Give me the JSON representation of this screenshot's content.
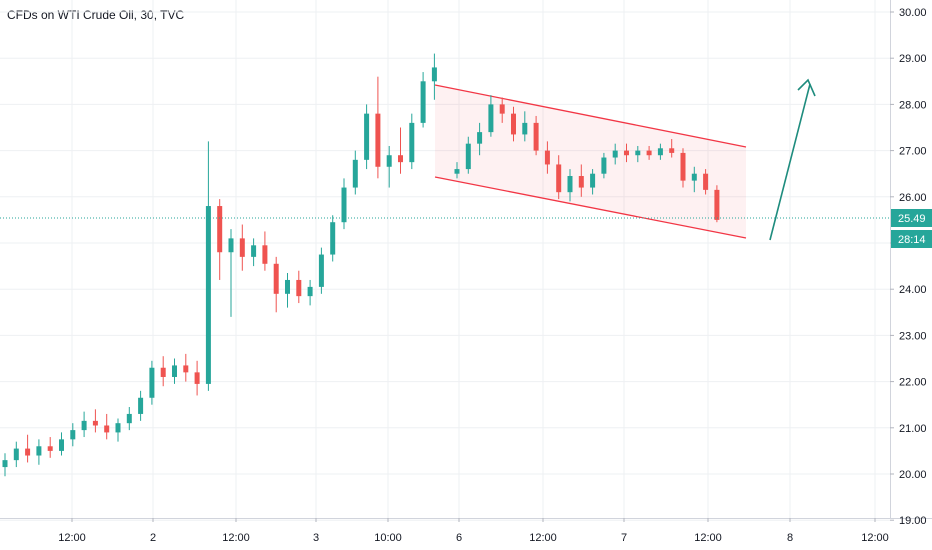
{
  "chart_data": {
    "type": "candlestick",
    "title": "CFDs on WTI Crude Oil, 30, TVC",
    "y_ticks": [
      "30.00",
      "29.00",
      "28.00",
      "27.00",
      "26.00",
      "25.00",
      "24.00",
      "23.00",
      "22.00",
      "21.00",
      "20.00",
      "19.00"
    ],
    "x_ticks": [
      "12:00",
      "2",
      "12:00",
      "3",
      "10:00",
      "6",
      "12:00",
      "7",
      "12:00",
      "8",
      "12:00"
    ],
    "ylim": [
      19.0,
      30.2
    ],
    "grid": true,
    "last_price": "25.49",
    "countdown": "28:14",
    "colors": {
      "up": "#26a69a",
      "down": "#ef5350",
      "channel": "#f23645",
      "arrow": "#1e8c7e",
      "price_line": "#26a69a"
    },
    "candles_approx": [
      {
        "t": 0,
        "o": 20.15,
        "h": 20.45,
        "l": 19.95,
        "c": 20.3
      },
      {
        "t": 1,
        "o": 20.3,
        "h": 20.7,
        "l": 20.15,
        "c": 20.55
      },
      {
        "t": 2,
        "o": 20.55,
        "h": 20.85,
        "l": 20.25,
        "c": 20.4
      },
      {
        "t": 3,
        "o": 20.4,
        "h": 20.75,
        "l": 20.2,
        "c": 20.6
      },
      {
        "t": 4,
        "o": 20.6,
        "h": 20.8,
        "l": 20.35,
        "c": 20.5
      },
      {
        "t": 5,
        "o": 20.5,
        "h": 20.9,
        "l": 20.4,
        "c": 20.75
      },
      {
        "t": 6,
        "o": 20.75,
        "h": 21.1,
        "l": 20.6,
        "c": 20.95
      },
      {
        "t": 7,
        "o": 20.95,
        "h": 21.35,
        "l": 20.8,
        "c": 21.15
      },
      {
        "t": 8,
        "o": 21.15,
        "h": 21.4,
        "l": 20.9,
        "c": 21.05
      },
      {
        "t": 9,
        "o": 21.05,
        "h": 21.3,
        "l": 20.75,
        "c": 20.9
      },
      {
        "t": 10,
        "o": 20.9,
        "h": 21.2,
        "l": 20.7,
        "c": 21.1
      },
      {
        "t": 11,
        "o": 21.1,
        "h": 21.45,
        "l": 20.95,
        "c": 21.3
      },
      {
        "t": 12,
        "o": 21.3,
        "h": 21.8,
        "l": 21.15,
        "c": 21.65
      },
      {
        "t": 13,
        "o": 21.65,
        "h": 22.45,
        "l": 21.5,
        "c": 22.3
      },
      {
        "t": 14,
        "o": 22.3,
        "h": 22.55,
        "l": 21.9,
        "c": 22.1
      },
      {
        "t": 15,
        "o": 22.1,
        "h": 22.5,
        "l": 21.95,
        "c": 22.35
      },
      {
        "t": 16,
        "o": 22.35,
        "h": 22.6,
        "l": 22.0,
        "c": 22.2
      },
      {
        "t": 17,
        "o": 22.2,
        "h": 22.45,
        "l": 21.7,
        "c": 21.95
      },
      {
        "t": 18,
        "o": 21.95,
        "h": 27.2,
        "l": 21.8,
        "c": 25.8
      },
      {
        "t": 19,
        "o": 25.8,
        "h": 25.95,
        "l": 24.2,
        "c": 24.8
      },
      {
        "t": 20,
        "o": 24.8,
        "h": 25.3,
        "l": 23.4,
        "c": 25.1
      },
      {
        "t": 21,
        "o": 25.1,
        "h": 25.4,
        "l": 24.4,
        "c": 24.7
      },
      {
        "t": 22,
        "o": 24.7,
        "h": 25.1,
        "l": 24.5,
        "c": 24.95
      },
      {
        "t": 23,
        "o": 24.95,
        "h": 25.25,
        "l": 24.4,
        "c": 24.55
      },
      {
        "t": 24,
        "o": 24.55,
        "h": 24.7,
        "l": 23.5,
        "c": 23.9
      },
      {
        "t": 25,
        "o": 23.9,
        "h": 24.35,
        "l": 23.6,
        "c": 24.2
      },
      {
        "t": 26,
        "o": 24.2,
        "h": 24.4,
        "l": 23.7,
        "c": 23.85
      },
      {
        "t": 27,
        "o": 23.85,
        "h": 24.2,
        "l": 23.65,
        "c": 24.05
      },
      {
        "t": 28,
        "o": 24.05,
        "h": 24.9,
        "l": 23.9,
        "c": 24.75
      },
      {
        "t": 29,
        "o": 24.75,
        "h": 25.6,
        "l": 24.6,
        "c": 25.45
      },
      {
        "t": 30,
        "o": 25.45,
        "h": 26.4,
        "l": 25.3,
        "c": 26.2
      },
      {
        "t": 31,
        "o": 26.2,
        "h": 27.0,
        "l": 26.05,
        "c": 26.8
      },
      {
        "t": 32,
        "o": 26.8,
        "h": 28.0,
        "l": 26.6,
        "c": 27.8
      },
      {
        "t": 33,
        "o": 27.8,
        "h": 28.6,
        "l": 26.4,
        "c": 26.65
      },
      {
        "t": 34,
        "o": 26.65,
        "h": 27.1,
        "l": 26.2,
        "c": 26.9
      },
      {
        "t": 35,
        "o": 26.9,
        "h": 27.5,
        "l": 26.5,
        "c": 26.75
      },
      {
        "t": 36,
        "o": 26.75,
        "h": 27.8,
        "l": 26.6,
        "c": 27.6
      },
      {
        "t": 37,
        "o": 27.6,
        "h": 28.7,
        "l": 27.5,
        "c": 28.5
      },
      {
        "t": 38,
        "o": 28.5,
        "h": 29.1,
        "l": 28.1,
        "c": 28.8
      },
      {
        "t": 40,
        "o": 26.5,
        "h": 26.75,
        "l": 26.4,
        "c": 26.6
      },
      {
        "t": 41,
        "o": 26.6,
        "h": 27.3,
        "l": 26.5,
        "c": 27.15
      },
      {
        "t": 42,
        "o": 27.15,
        "h": 27.6,
        "l": 26.9,
        "c": 27.4
      },
      {
        "t": 43,
        "o": 27.4,
        "h": 28.2,
        "l": 27.3,
        "c": 28.0
      },
      {
        "t": 44,
        "o": 28.0,
        "h": 28.15,
        "l": 27.6,
        "c": 27.8
      },
      {
        "t": 45,
        "o": 27.8,
        "h": 27.95,
        "l": 27.2,
        "c": 27.35
      },
      {
        "t": 46,
        "o": 27.35,
        "h": 27.85,
        "l": 27.2,
        "c": 27.6
      },
      {
        "t": 47,
        "o": 27.6,
        "h": 27.75,
        "l": 26.9,
        "c": 27.0
      },
      {
        "t": 48,
        "o": 27.0,
        "h": 27.2,
        "l": 26.5,
        "c": 26.7
      },
      {
        "t": 49,
        "o": 26.7,
        "h": 26.9,
        "l": 25.95,
        "c": 26.1
      },
      {
        "t": 50,
        "o": 26.1,
        "h": 26.6,
        "l": 25.9,
        "c": 26.45
      },
      {
        "t": 51,
        "o": 26.45,
        "h": 26.7,
        "l": 26.0,
        "c": 26.2
      },
      {
        "t": 52,
        "o": 26.2,
        "h": 26.6,
        "l": 26.05,
        "c": 26.5
      },
      {
        "t": 53,
        "o": 26.5,
        "h": 26.95,
        "l": 26.4,
        "c": 26.85
      },
      {
        "t": 54,
        "o": 26.85,
        "h": 27.15,
        "l": 26.7,
        "c": 27.0
      },
      {
        "t": 55,
        "o": 27.0,
        "h": 27.15,
        "l": 26.75,
        "c": 26.9
      },
      {
        "t": 56,
        "o": 26.9,
        "h": 27.1,
        "l": 26.75,
        "c": 27.0
      },
      {
        "t": 57,
        "o": 27.0,
        "h": 27.1,
        "l": 26.8,
        "c": 26.9
      },
      {
        "t": 58,
        "o": 26.9,
        "h": 27.15,
        "l": 26.8,
        "c": 27.05
      },
      {
        "t": 59,
        "o": 27.05,
        "h": 27.25,
        "l": 26.85,
        "c": 26.95
      },
      {
        "t": 60,
        "o": 26.95,
        "h": 27.05,
        "l": 26.2,
        "c": 26.35
      },
      {
        "t": 61,
        "o": 26.35,
        "h": 26.65,
        "l": 26.1,
        "c": 26.5
      },
      {
        "t": 62,
        "o": 26.5,
        "h": 26.6,
        "l": 26.05,
        "c": 26.15
      },
      {
        "t": 63,
        "o": 26.15,
        "h": 26.25,
        "l": 25.45,
        "c": 25.5
      }
    ]
  }
}
